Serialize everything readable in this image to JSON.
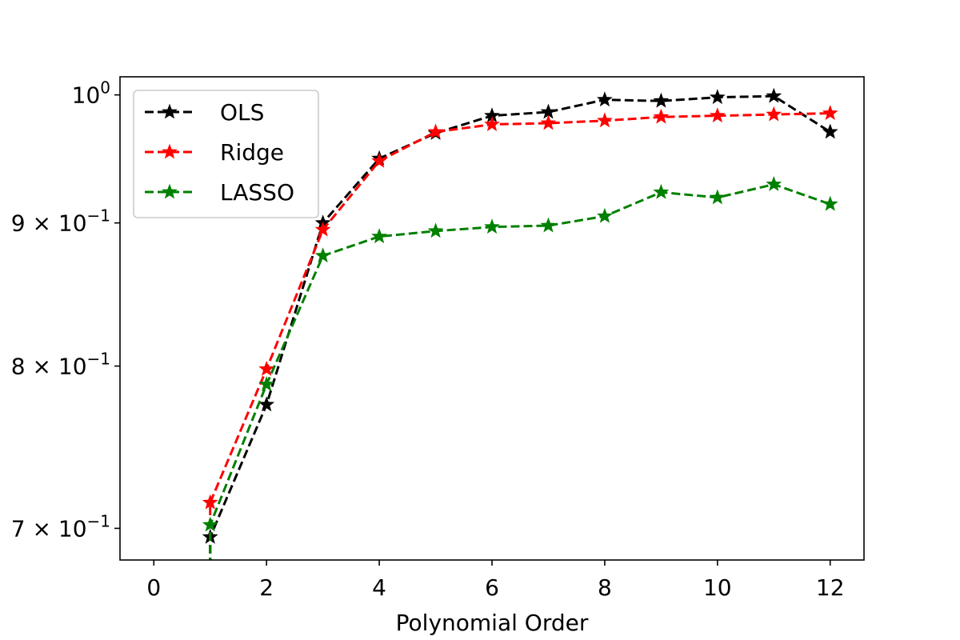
{
  "chart_data": {
    "type": "line",
    "title": "",
    "xlabel": "Polynomial Order",
    "ylabel": "",
    "x_ticks": [
      "0",
      "2",
      "4",
      "6",
      "8",
      "10",
      "12"
    ],
    "y_scale": "log",
    "y_ticks": [
      {
        "value": 1.0,
        "base": "10",
        "exp": "0",
        "mantissa": ""
      },
      {
        "value": 0.9,
        "base": "10",
        "exp": "−1",
        "mantissa": "9"
      },
      {
        "value": 0.8,
        "base": "10",
        "exp": "−1",
        "mantissa": "8"
      },
      {
        "value": 0.7,
        "base": "10",
        "exp": "−1",
        "mantissa": "7"
      }
    ],
    "xlim": [
      -0.6,
      12.6
    ],
    "ylim": [
      0.682,
      1.015
    ],
    "legend_position": "upper-left",
    "grid": false,
    "x": [
      1,
      2,
      3,
      4,
      5,
      6,
      7,
      8,
      9,
      10,
      11,
      12
    ],
    "series": [
      {
        "name": "OLS",
        "color": "#000000",
        "marker": "star",
        "values": [
          0.695,
          0.775,
          0.9,
          0.949,
          0.969,
          0.983,
          0.986,
          0.996,
          0.995,
          0.998,
          0.999,
          0.97
        ]
      },
      {
        "name": "Ridge",
        "color": "#ff0000",
        "marker": "star",
        "values": [
          0.715,
          0.798,
          0.895,
          0.947,
          0.97,
          0.976,
          0.977,
          0.979,
          0.982,
          0.983,
          0.984,
          0.985
        ]
      },
      {
        "name": "LASSO",
        "color": "#008000",
        "marker": "star",
        "values": [
          0.702,
          0.788,
          0.876,
          0.89,
          0.894,
          0.897,
          0.898,
          0.905,
          0.923,
          0.919,
          0.929,
          0.914
        ]
      }
    ]
  }
}
